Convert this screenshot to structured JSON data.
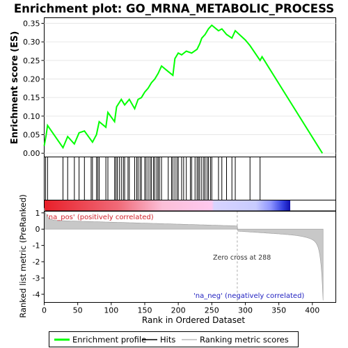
{
  "chart_data": {
    "type": "line",
    "title": "Enrichment plot: GO_MRNA_METABOLIC_PROCESS",
    "es_panel": {
      "ylabel": "Enrichment score (ES)",
      "ylim": [
        -0.01,
        0.365
      ],
      "yticks": [
        0.0,
        0.05,
        0.1,
        0.15,
        0.2,
        0.25,
        0.3,
        0.35
      ],
      "series": [
        {
          "name": "Enrichment profile",
          "color": "#00ff00",
          "x": [
            0,
            3,
            5,
            28,
            35,
            45,
            52,
            60,
            72,
            78,
            82,
            92,
            95,
            105,
            108,
            115,
            120,
            127,
            135,
            140,
            145,
            150,
            155,
            160,
            165,
            170,
            175,
            185,
            192,
            195,
            200,
            205,
            212,
            220,
            228,
            232,
            235,
            240,
            245,
            250,
            260,
            265,
            272,
            280,
            285,
            300,
            307,
            322,
            325,
            415
          ],
          "y": [
            0.02,
            0.05,
            0.075,
            0.015,
            0.045,
            0.025,
            0.055,
            0.06,
            0.03,
            0.05,
            0.085,
            0.07,
            0.11,
            0.085,
            0.125,
            0.145,
            0.13,
            0.145,
            0.12,
            0.145,
            0.15,
            0.165,
            0.175,
            0.19,
            0.2,
            0.215,
            0.235,
            0.22,
            0.21,
            0.255,
            0.27,
            0.265,
            0.275,
            0.27,
            0.28,
            0.295,
            0.31,
            0.32,
            0.335,
            0.345,
            0.33,
            0.335,
            0.32,
            0.31,
            0.33,
            0.305,
            0.29,
            0.25,
            0.26,
            0.0
          ]
        }
      ]
    },
    "hits": [
      2,
      5,
      28,
      35,
      45,
      52,
      60,
      70,
      72,
      78,
      80,
      82,
      92,
      95,
      105,
      107,
      109,
      112,
      115,
      118,
      120,
      125,
      127,
      135,
      138,
      140,
      143,
      145,
      150,
      152,
      155,
      158,
      160,
      163,
      165,
      168,
      170,
      172,
      175,
      185,
      190,
      192,
      195,
      198,
      200,
      205,
      208,
      212,
      218,
      220,
      225,
      228,
      230,
      232,
      235,
      238,
      240,
      243,
      245,
      248,
      250,
      260,
      265,
      272,
      280,
      285,
      307,
      322
    ],
    "metric_panel": {
      "ylabel": "Ranked list metric (PreRanked)",
      "xlabel": "Rank in Ordered Dataset",
      "xlim": [
        0,
        435
      ],
      "xticks": [
        0,
        50,
        100,
        150,
        200,
        250,
        300,
        350,
        400
      ],
      "ylim": [
        -4.5,
        1.1
      ],
      "yticks": [
        1,
        0,
        -1,
        -2,
        -3,
        -4
      ],
      "n_genes": 416,
      "zero_cross": 288,
      "pos_label": "'na_pos' (positively correlated)",
      "neg_label": "'na_neg' (negatively correlated)",
      "zero_cross_label": "Zero cross at 288"
    },
    "legend": {
      "placement": "bottom",
      "entries": [
        "Enrichment profile",
        "Hits",
        "Ranking metric scores"
      ]
    }
  }
}
